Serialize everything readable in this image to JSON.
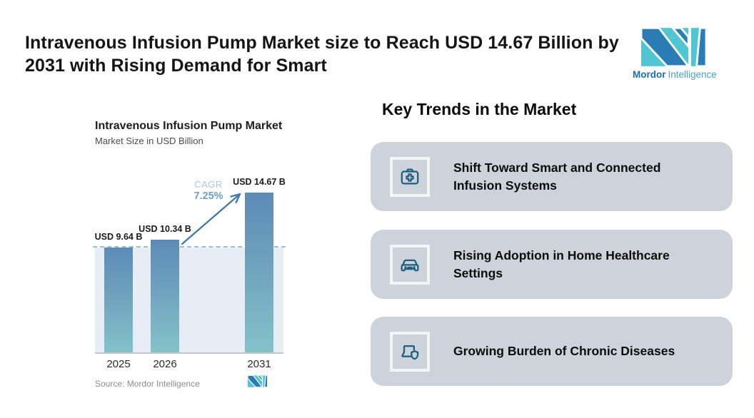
{
  "header": {
    "title_lines": [
      "Intravenous Infusion Pump Market size to Reach USD 14.67 Billion by",
      "2031 with Rising Demand for Smart"
    ],
    "brand": {
      "name_bold": "Mordor",
      "name_light": "Intelligence"
    }
  },
  "chart_data": {
    "type": "bar",
    "title": "Intravenous Infusion Pump Market",
    "subtitle": "Market Size in USD Billion",
    "categories": [
      "2025",
      "2026",
      "2031"
    ],
    "values": [
      9.64,
      10.34,
      14.67
    ],
    "value_labels": [
      "USD 9.64 B",
      "USD 10.34 B",
      "USD 14.67 B"
    ],
    "ylabel": "Market Size in USD Billion",
    "annotations": {
      "cagr_label": "CAGR",
      "cagr_value": "7.25%"
    },
    "reference_line_value": 9.64,
    "source": "Source: Mordor Intelligence",
    "legend": "off",
    "grid": "off"
  },
  "key_trends": {
    "heading": "Key Trends in the Market",
    "items": [
      {
        "icon": "first-aid-kit-icon",
        "label": "Shift Toward Smart and Connected Infusion Systems"
      },
      {
        "icon": "car-icon",
        "label": "Rising Adoption in Home Healthcare Settings"
      },
      {
        "icon": "laptop-shield-icon",
        "label": "Growing Burden of Chronic Diseases"
      }
    ]
  },
  "colors": {
    "accent_teal": "#4fc6d2",
    "accent_blue": "#2a7cb4",
    "bar_gradient_top": "#5d8bb7",
    "bar_gradient_bottom": "#84c2ca",
    "band": "#e7edf4",
    "dashed_line": "#9abfdb",
    "arrow": "#4579ac",
    "card_background": "#cdd3da",
    "icon_stroke": "#1d5f80"
  }
}
